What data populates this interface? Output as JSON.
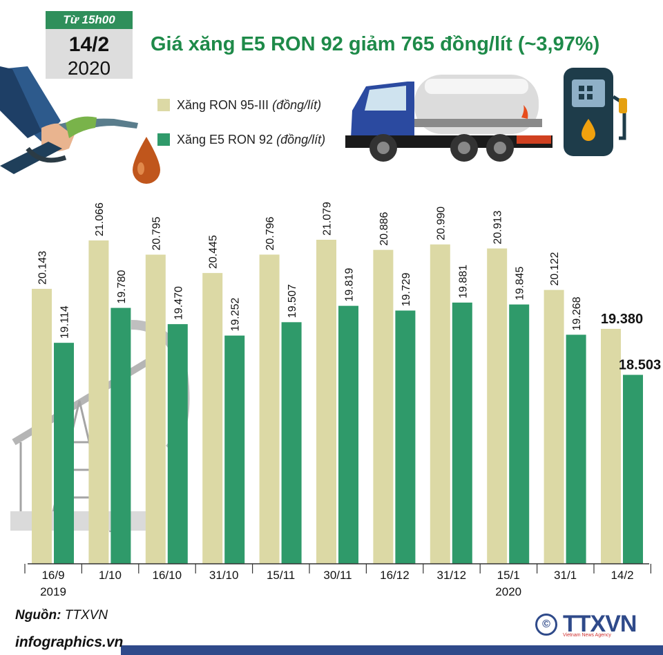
{
  "badge": {
    "time": "Từ 15h00",
    "day": "14/2",
    "year": "2020"
  },
  "title": "Giá xăng E5 RON 92 giảm 765 đồng/lít (~3,97%)",
  "legend": [
    {
      "name": "Xăng RON 95-III",
      "unit": "(đồng/lít)",
      "color": "#dcd9a5"
    },
    {
      "name": "Xăng E5 RON 92",
      "unit": "(đồng/lít)",
      "color": "#2f9a6a"
    }
  ],
  "chart_data": {
    "type": "bar",
    "categories": [
      "16/9",
      "1/10",
      "16/10",
      "31/10",
      "15/11",
      "30/11",
      "16/12",
      "31/12",
      "15/1",
      "31/1",
      "14/2"
    ],
    "year_labels": [
      {
        "category": "16/9",
        "label": "2019"
      },
      {
        "category": "15/1",
        "label": "2020"
      }
    ],
    "series": [
      {
        "name": "Xăng RON 95-III (đồng/lít)",
        "color": "#dcd9a5",
        "values": [
          20143,
          21066,
          20795,
          20445,
          20796,
          21079,
          20886,
          20990,
          20913,
          20122,
          19380
        ],
        "labels": [
          "20.143",
          "21.066",
          "20.795",
          "20.445",
          "20.796",
          "21.079",
          "20.886",
          "20.990",
          "20.913",
          "20.122",
          "19.380"
        ]
      },
      {
        "name": "Xăng E5 RON 92 (đồng/lít)",
        "color": "#2f9a6a",
        "values": [
          19114,
          19780,
          19470,
          19252,
          19507,
          19819,
          19729,
          19881,
          19845,
          19268,
          18503
        ],
        "labels": [
          "19.114",
          "19.780",
          "19.470",
          "19.252",
          "19.507",
          "19.819",
          "19.729",
          "19.881",
          "19.845",
          "19.268",
          "18.503"
        ]
      }
    ]
  },
  "source": {
    "label": "Nguồn:",
    "value": "TTXVN"
  },
  "website": "infographics.vn",
  "logo": {
    "symbol": "©",
    "name": "TTXVN",
    "subtitle": "Vietnam News Agency"
  }
}
